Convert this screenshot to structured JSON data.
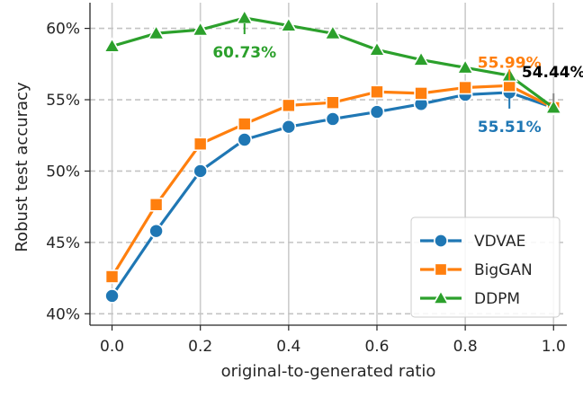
{
  "chart_data": {
    "type": "line",
    "x": [
      0.0,
      0.1,
      0.2,
      0.3,
      0.4,
      0.5,
      0.6,
      0.7,
      0.8,
      0.9,
      1.0
    ],
    "xlabel": "original-to-generated ratio",
    "ylabel": "Robust test accuracy",
    "xlim": [
      -0.05,
      1.03
    ],
    "ylim": [
      39.2,
      61.8
    ],
    "xticks": [
      "0.0",
      "0.2",
      "0.4",
      "0.6",
      "0.8",
      "1.0"
    ],
    "yticks": [
      "40%",
      "45%",
      "50%",
      "55%",
      "60%"
    ],
    "grid": true,
    "legend_position": "lower-right",
    "series": [
      {
        "name": "VDVAE",
        "color": "#1f77b4",
        "marker": "circle",
        "values": [
          41.25,
          45.8,
          50.0,
          52.2,
          53.1,
          53.65,
          54.15,
          54.7,
          55.35,
          55.51,
          54.44
        ]
      },
      {
        "name": "BigGAN",
        "color": "#ff7f0e",
        "marker": "square",
        "values": [
          42.6,
          47.65,
          51.9,
          53.3,
          54.6,
          54.8,
          55.55,
          55.45,
          55.85,
          55.99,
          54.44
        ]
      },
      {
        "name": "DDPM",
        "color": "#2ca02c",
        "marker": "triangle",
        "values": [
          58.75,
          59.65,
          59.9,
          60.73,
          60.2,
          59.65,
          58.5,
          57.8,
          57.25,
          56.7,
          54.44
        ]
      }
    ],
    "annotations": [
      {
        "text": "60.73%",
        "x": 0.3,
        "y": 60.73,
        "color": "#2ca02c"
      },
      {
        "text": "55.99%",
        "x": 0.9,
        "y": 55.99,
        "color": "#ff7f0e"
      },
      {
        "text": "55.51%",
        "x": 0.9,
        "y": 55.51,
        "color": "#1f77b4"
      },
      {
        "text": "54.44%",
        "x": 1.0,
        "y": 54.44,
        "color": "#000000"
      }
    ]
  }
}
